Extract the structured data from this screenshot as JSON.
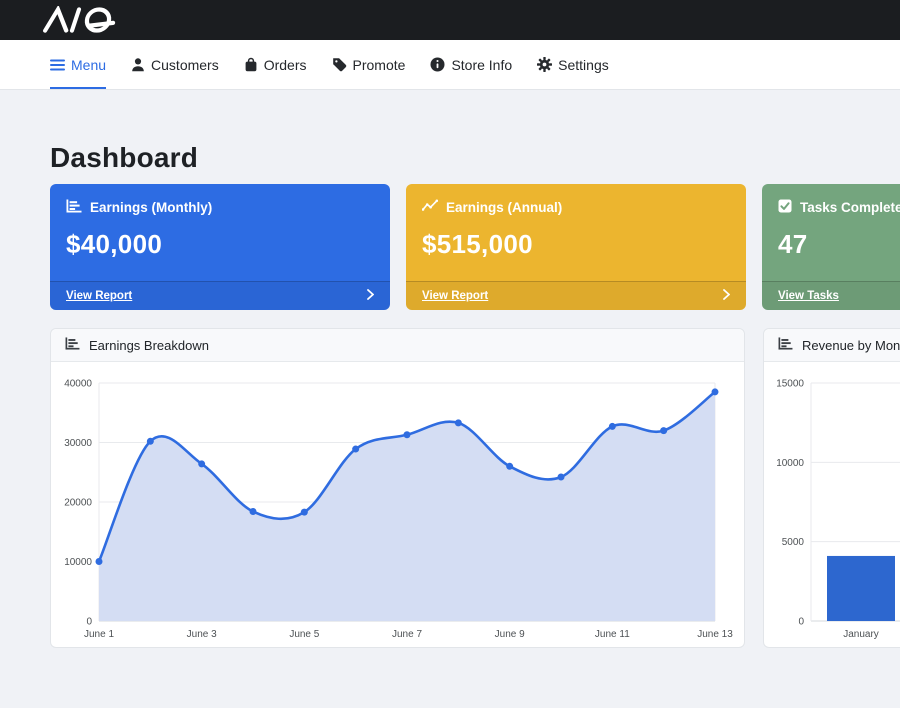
{
  "topbar": {
    "brand": "AQ"
  },
  "nav": {
    "items": [
      {
        "label": "Menu",
        "icon": "hamburger-icon",
        "active": true
      },
      {
        "label": "Customers",
        "icon": "person-icon",
        "active": false
      },
      {
        "label": "Orders",
        "icon": "bag-icon",
        "active": false
      },
      {
        "label": "Promote",
        "icon": "tag-icon",
        "active": false
      },
      {
        "label": "Store Info",
        "icon": "info-icon",
        "active": false
      },
      {
        "label": "Settings",
        "icon": "gear-icon",
        "active": false
      }
    ]
  },
  "page": {
    "title": "Dashboard"
  },
  "stat_cards": [
    {
      "title": "Earnings (Monthly)",
      "value": "$40,000",
      "link_label": "View Report",
      "color": "#2d6ce3",
      "icon": "chart-bar-icon"
    },
    {
      "title": "Earnings (Annual)",
      "value": "$515,000",
      "link_label": "View Report",
      "color": "#ecb52f",
      "icon": "chart-line-icon"
    },
    {
      "title": "Tasks Completed",
      "value": "47",
      "link_label": "View Tasks",
      "color": "#74a57e",
      "icon": "check-square-icon"
    }
  ],
  "chart_data": [
    {
      "type": "line",
      "title": "Earnings Breakdown",
      "x": [
        "June 1",
        "June 2",
        "June 3",
        "June 4",
        "June 5",
        "June 6",
        "June 7",
        "June 8",
        "June 9",
        "June 10",
        "June 11",
        "June 12",
        "June 13"
      ],
      "values": [
        10000,
        30200,
        26400,
        18400,
        18300,
        28900,
        31300,
        33300,
        26000,
        24200,
        32700,
        32000,
        38500
      ],
      "ylim": [
        0,
        40000
      ],
      "yticks": [
        0,
        10000,
        20000,
        30000,
        40000
      ],
      "xtick_every": 2,
      "grid": true,
      "legend": "none",
      "line_color": "#2f6ce0",
      "fill_color": "#d4ddf3",
      "point_radius": 3.5
    },
    {
      "type": "bar",
      "title": "Revenue by Month",
      "categories": [
        "January"
      ],
      "values": [
        4100
      ],
      "ylim": [
        0,
        15000
      ],
      "yticks": [
        0,
        5000,
        10000,
        15000
      ],
      "grid": true,
      "legend": "none",
      "bar_color": "#2d67cf",
      "note": "chart clipped at right edge of viewport; only January bar visible"
    }
  ]
}
